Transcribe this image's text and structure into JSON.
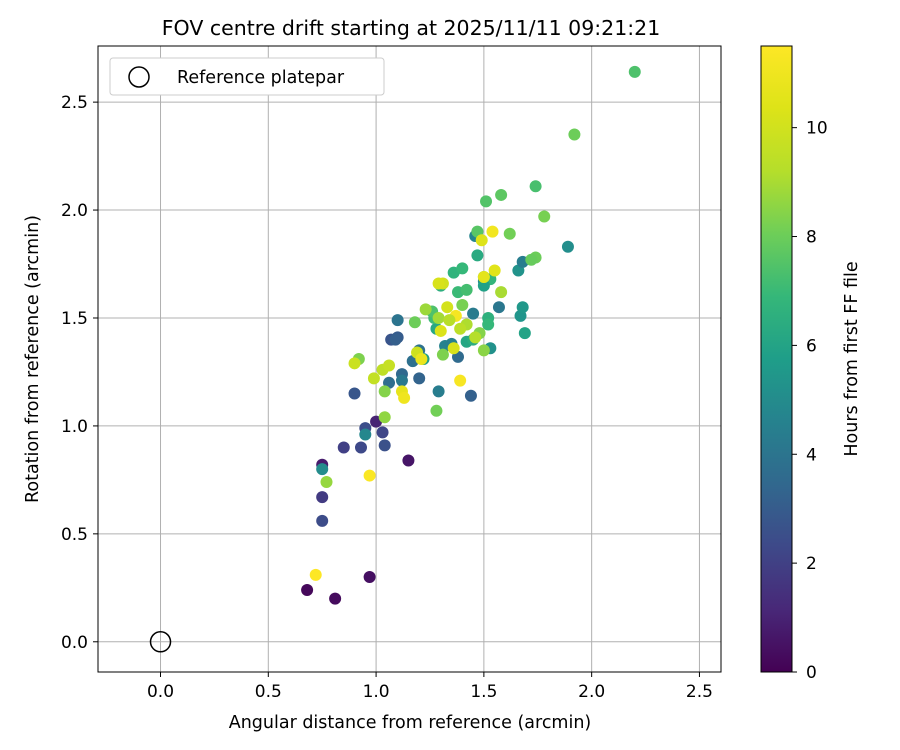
{
  "chart_data": {
    "type": "scatter",
    "title": "FOV centre drift starting at 2025/11/11 09:21:21",
    "xlabel": "Angular distance from reference (arcmin)",
    "ylabel": "Rotation from reference (arcmin)",
    "xlim": [
      -0.29,
      2.6
    ],
    "ylim": [
      -0.14,
      2.76
    ],
    "xticks": [
      "0.0",
      "0.5",
      "1.0",
      "1.5",
      "2.0",
      "2.5"
    ],
    "yticks": [
      "0.0",
      "0.5",
      "1.0",
      "1.5",
      "2.0",
      "2.5"
    ],
    "grid": true,
    "legend": {
      "position": "top-left",
      "label": "Reference platepar"
    },
    "reference_point": {
      "x": 0.0,
      "y": 0.0
    },
    "colorbar": {
      "label": "Hours from first FF file",
      "min": 0,
      "max": 11.5,
      "ticks": [
        "0",
        "2",
        "4",
        "6",
        "8",
        "10"
      ],
      "colormap": "viridis"
    },
    "points": [
      {
        "x": 0.68,
        "y": 0.24,
        "h": 0.2
      },
      {
        "x": 0.81,
        "y": 0.2,
        "h": 0.3
      },
      {
        "x": 0.97,
        "y": 0.3,
        "h": 0.4
      },
      {
        "x": 0.75,
        "y": 0.82,
        "h": 0.8
      },
      {
        "x": 1.15,
        "y": 0.84,
        "h": 0.6
      },
      {
        "x": 1.0,
        "y": 1.02,
        "h": 1.0
      },
      {
        "x": 0.75,
        "y": 0.67,
        "h": 1.8
      },
      {
        "x": 0.75,
        "y": 0.56,
        "h": 2.4
      },
      {
        "x": 0.85,
        "y": 0.9,
        "h": 2.0
      },
      {
        "x": 0.93,
        "y": 0.9,
        "h": 2.3
      },
      {
        "x": 0.95,
        "y": 0.99,
        "h": 2.5
      },
      {
        "x": 1.03,
        "y": 0.97,
        "h": 2.2
      },
      {
        "x": 1.04,
        "y": 0.91,
        "h": 2.6
      },
      {
        "x": 0.9,
        "y": 1.15,
        "h": 2.8
      },
      {
        "x": 1.07,
        "y": 1.4,
        "h": 2.7
      },
      {
        "x": 1.1,
        "y": 1.41,
        "h": 3.0
      },
      {
        "x": 1.09,
        "y": 1.4,
        "h": 3.1
      },
      {
        "x": 1.12,
        "y": 1.24,
        "h": 3.5
      },
      {
        "x": 1.1,
        "y": 1.49,
        "h": 4.0
      },
      {
        "x": 1.12,
        "y": 1.21,
        "h": 4.2
      },
      {
        "x": 1.2,
        "y": 1.22,
        "h": 3.3
      },
      {
        "x": 1.17,
        "y": 1.3,
        "h": 3.8
      },
      {
        "x": 1.2,
        "y": 1.35,
        "h": 3.9
      },
      {
        "x": 1.06,
        "y": 1.2,
        "h": 3.7
      },
      {
        "x": 1.44,
        "y": 1.14,
        "h": 3.2
      },
      {
        "x": 1.29,
        "y": 1.16,
        "h": 4.4
      },
      {
        "x": 0.95,
        "y": 0.96,
        "h": 4.8
      },
      {
        "x": 0.75,
        "y": 0.8,
        "h": 5.0
      },
      {
        "x": 1.32,
        "y": 1.37,
        "h": 4.6
      },
      {
        "x": 1.35,
        "y": 1.38,
        "h": 4.5
      },
      {
        "x": 1.38,
        "y": 1.32,
        "h": 3.6
      },
      {
        "x": 1.45,
        "y": 1.52,
        "h": 4.3
      },
      {
        "x": 1.46,
        "y": 1.88,
        "h": 4.7
      },
      {
        "x": 1.5,
        "y": 1.67,
        "h": 4.9
      },
      {
        "x": 1.57,
        "y": 1.55,
        "h": 4.1
      },
      {
        "x": 1.53,
        "y": 1.36,
        "h": 5.2
      },
      {
        "x": 1.66,
        "y": 1.72,
        "h": 5.3
      },
      {
        "x": 1.68,
        "y": 1.76,
        "h": 4.4
      },
      {
        "x": 1.67,
        "y": 1.51,
        "h": 5.4
      },
      {
        "x": 1.68,
        "y": 1.55,
        "h": 5.5
      },
      {
        "x": 1.69,
        "y": 1.43,
        "h": 6.0
      },
      {
        "x": 1.89,
        "y": 1.83,
        "h": 5.1
      },
      {
        "x": 1.22,
        "y": 1.31,
        "h": 5.8
      },
      {
        "x": 1.28,
        "y": 1.45,
        "h": 6.2
      },
      {
        "x": 1.3,
        "y": 1.65,
        "h": 6.5
      },
      {
        "x": 1.42,
        "y": 1.39,
        "h": 6.1
      },
      {
        "x": 1.45,
        "y": 1.4,
        "h": 6.4
      },
      {
        "x": 1.47,
        "y": 1.79,
        "h": 6.3
      },
      {
        "x": 1.52,
        "y": 1.5,
        "h": 6.6
      },
      {
        "x": 1.53,
        "y": 1.68,
        "h": 6.8
      },
      {
        "x": 1.5,
        "y": 1.65,
        "h": 5.9
      },
      {
        "x": 1.36,
        "y": 1.71,
        "h": 6.7
      },
      {
        "x": 1.4,
        "y": 1.73,
        "h": 6.9
      },
      {
        "x": 1.38,
        "y": 1.62,
        "h": 7.0
      },
      {
        "x": 1.42,
        "y": 1.63,
        "h": 7.2
      },
      {
        "x": 1.52,
        "y": 1.47,
        "h": 6.9
      },
      {
        "x": 1.27,
        "y": 1.5,
        "h": 7.1
      },
      {
        "x": 1.26,
        "y": 1.53,
        "h": 7.4
      },
      {
        "x": 1.74,
        "y": 2.11,
        "h": 7.3
      },
      {
        "x": 1.51,
        "y": 2.04,
        "h": 7.5
      },
      {
        "x": 1.58,
        "y": 2.07,
        "h": 7.7
      },
      {
        "x": 2.2,
        "y": 2.64,
        "h": 7.4
      },
      {
        "x": 1.47,
        "y": 1.9,
        "h": 7.6
      },
      {
        "x": 1.5,
        "y": 1.69,
        "h": 7.8
      },
      {
        "x": 1.74,
        "y": 1.78,
        "h": 8.0
      },
      {
        "x": 1.72,
        "y": 1.77,
        "h": 7.9
      },
      {
        "x": 1.62,
        "y": 1.89,
        "h": 8.1
      },
      {
        "x": 1.78,
        "y": 1.97,
        "h": 8.2
      },
      {
        "x": 1.92,
        "y": 2.35,
        "h": 8.0
      },
      {
        "x": 1.28,
        "y": 1.07,
        "h": 8.1
      },
      {
        "x": 1.31,
        "y": 1.33,
        "h": 8.3
      },
      {
        "x": 1.4,
        "y": 1.56,
        "h": 8.2
      },
      {
        "x": 1.48,
        "y": 1.43,
        "h": 8.4
      },
      {
        "x": 1.5,
        "y": 1.35,
        "h": 8.5
      },
      {
        "x": 1.18,
        "y": 1.48,
        "h": 8.0
      },
      {
        "x": 1.04,
        "y": 1.04,
        "h": 8.6
      },
      {
        "x": 0.77,
        "y": 0.74,
        "h": 8.7
      },
      {
        "x": 0.92,
        "y": 1.31,
        "h": 8.3
      },
      {
        "x": 1.04,
        "y": 1.16,
        "h": 8.4
      },
      {
        "x": 1.23,
        "y": 1.54,
        "h": 8.8
      },
      {
        "x": 1.29,
        "y": 1.5,
        "h": 8.9
      },
      {
        "x": 1.58,
        "y": 1.62,
        "h": 9.0
      },
      {
        "x": 1.46,
        "y": 1.41,
        "h": 9.2
      },
      {
        "x": 1.42,
        "y": 1.47,
        "h": 9.1
      },
      {
        "x": 1.39,
        "y": 1.45,
        "h": 9.4
      },
      {
        "x": 1.03,
        "y": 1.26,
        "h": 9.5
      },
      {
        "x": 0.99,
        "y": 1.22,
        "h": 9.6
      },
      {
        "x": 0.9,
        "y": 1.29,
        "h": 9.8
      },
      {
        "x": 1.06,
        "y": 1.28,
        "h": 9.7
      },
      {
        "x": 1.19,
        "y": 1.34,
        "h": 9.9
      },
      {
        "x": 1.31,
        "y": 1.66,
        "h": 10.0
      },
      {
        "x": 1.29,
        "y": 1.66,
        "h": 10.2
      },
      {
        "x": 1.33,
        "y": 1.55,
        "h": 10.1
      },
      {
        "x": 1.3,
        "y": 1.44,
        "h": 10.3
      },
      {
        "x": 1.49,
        "y": 1.86,
        "h": 10.4
      },
      {
        "x": 1.55,
        "y": 1.72,
        "h": 10.5
      },
      {
        "x": 1.5,
        "y": 1.69,
        "h": 10.6
      },
      {
        "x": 1.36,
        "y": 1.36,
        "h": 10.2
      },
      {
        "x": 1.12,
        "y": 1.16,
        "h": 10.7
      },
      {
        "x": 1.13,
        "y": 1.13,
        "h": 11.0
      },
      {
        "x": 1.37,
        "y": 1.51,
        "h": 11.2
      },
      {
        "x": 1.39,
        "y": 1.21,
        "h": 11.3
      },
      {
        "x": 1.54,
        "y": 1.9,
        "h": 11.1
      },
      {
        "x": 0.97,
        "y": 0.77,
        "h": 11.4
      },
      {
        "x": 0.72,
        "y": 0.31,
        "h": 11.5
      },
      {
        "x": 1.21,
        "y": 1.31,
        "h": 10.8
      },
      {
        "x": 1.34,
        "y": 1.49,
        "h": 9.3
      }
    ]
  }
}
